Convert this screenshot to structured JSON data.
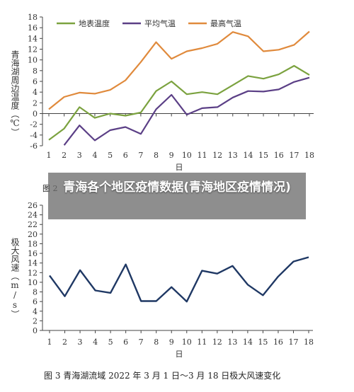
{
  "overlay_title": "青海各个地区疫情数据(青海地区疫情情况)",
  "chart_data": [
    {
      "type": "line",
      "caption": "图 2",
      "ylabel": "青海湖周边温度（℃）",
      "xlabel": "日",
      "ylim": [
        -6,
        18
      ],
      "yticks": [
        -6,
        -4,
        -2,
        0,
        2,
        4,
        6,
        8,
        10,
        12,
        14,
        16,
        18
      ],
      "categories": [
        1,
        2,
        3,
        4,
        5,
        6,
        7,
        8,
        9,
        10,
        11,
        12,
        13,
        14,
        15,
        16,
        17,
        18
      ],
      "series": [
        {
          "name": "地表温度",
          "color": "#7ba23f",
          "values": [
            -4.9,
            -2.8,
            1.2,
            -0.8,
            0.0,
            -0.4,
            0.2,
            4.2,
            6.0,
            3.6,
            4.0,
            3.6,
            5.3,
            7.0,
            6.5,
            7.3,
            8.9,
            7.2
          ]
        },
        {
          "name": "平均气温",
          "color": "#5b3f86",
          "values": [
            null,
            -5.9,
            -2.2,
            -5.0,
            -3.1,
            -2.5,
            -3.8,
            0.8,
            3.5,
            -0.2,
            1.0,
            1.2,
            3.0,
            4.2,
            4.1,
            4.5,
            5.9,
            6.7
          ]
        },
        {
          "name": "最高气温",
          "color": "#e08a3c",
          "values": [
            0.8,
            3.1,
            3.9,
            3.7,
            4.4,
            6.2,
            9.6,
            13.3,
            10.2,
            11.6,
            12.2,
            13.0,
            15.2,
            14.4,
            11.6,
            11.9,
            12.8,
            15.3
          ]
        }
      ]
    },
    {
      "type": "line",
      "caption": "图 3   青海湖流域 2022 年 3 月 1 日～3 月 18 日极大风速变化",
      "ylabel": "极大风速（m/s）",
      "xlabel": "日",
      "ylim": [
        0,
        26
      ],
      "yticks": [
        0,
        2,
        4,
        6,
        8,
        10,
        12,
        14,
        16,
        18,
        20,
        22,
        24,
        26
      ],
      "categories": [
        1,
        2,
        3,
        4,
        5,
        6,
        7,
        8,
        9,
        10,
        11,
        12,
        13,
        14,
        15,
        16,
        17,
        18
      ],
      "series": [
        {
          "color": "#1f3864",
          "values": [
            11.4,
            7.1,
            12.5,
            8.3,
            7.8,
            13.7,
            6.1,
            6.1,
            9.0,
            6.0,
            12.4,
            11.8,
            13.4,
            9.5,
            7.3,
            11.2,
            14.3,
            15.2
          ]
        }
      ]
    }
  ]
}
